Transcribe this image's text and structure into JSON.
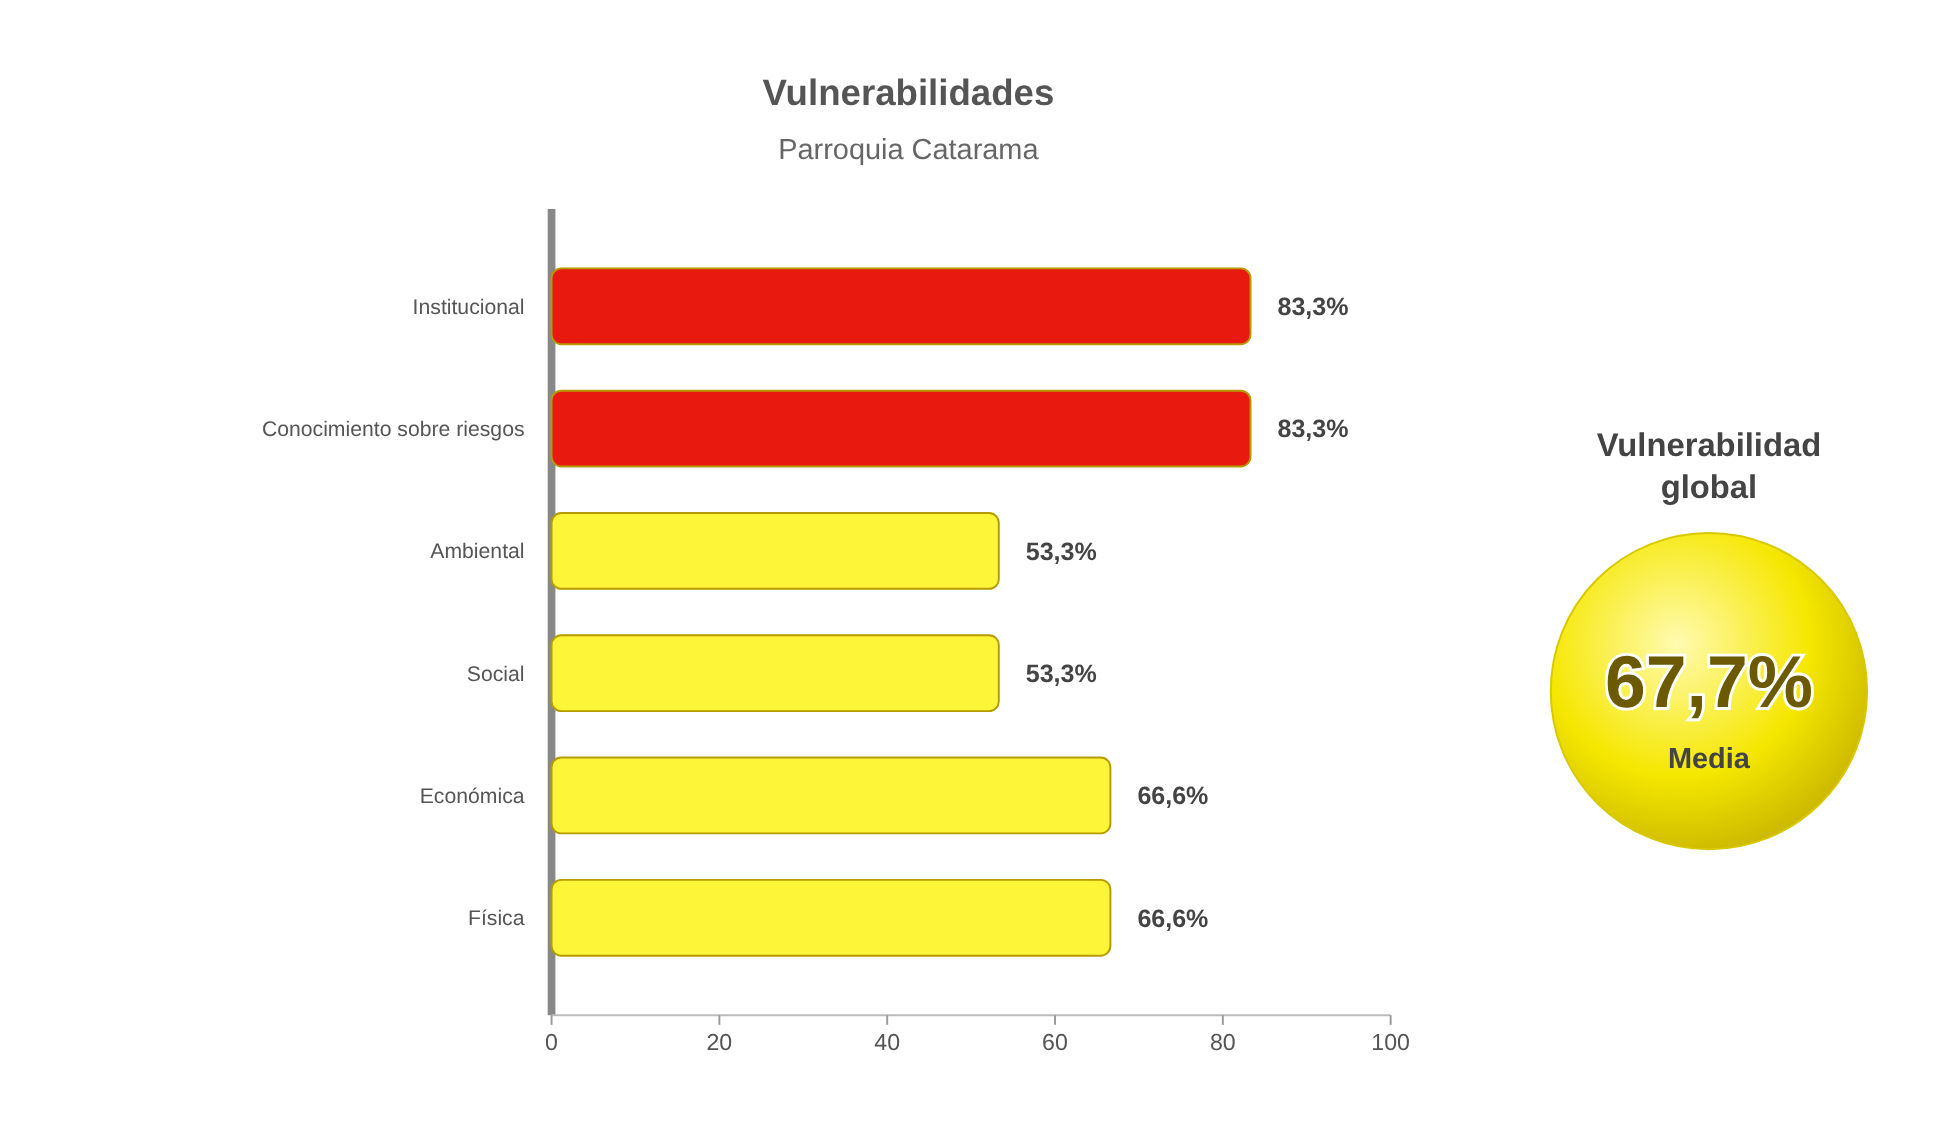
{
  "chart_data": {
    "type": "bar",
    "orientation": "horizontal",
    "title": "Vulnerabilidades",
    "subtitle": "Parroquia Catarama",
    "categories": [
      "Institucional",
      "Conocimiento sobre riesgos",
      "Ambiental",
      "Social",
      "Económica",
      "Física"
    ],
    "values": [
      83.3,
      83.3,
      53.3,
      53.3,
      66.6,
      66.6
    ],
    "colors": [
      "#e8190f",
      "#e8190f",
      "#fdf538",
      "#fdf538",
      "#fdf538",
      "#fdf538"
    ],
    "value_labels": [
      "83,3%",
      "83,3%",
      "53,3%",
      "53,3%",
      "66,6%",
      "66,6%"
    ],
    "xlim": [
      0,
      100
    ],
    "xticks": [
      0,
      20,
      40,
      60,
      80,
      100
    ],
    "grid": false,
    "annotations": [
      "Vulnerabilidad global",
      "67,7%",
      "Media"
    ]
  }
}
